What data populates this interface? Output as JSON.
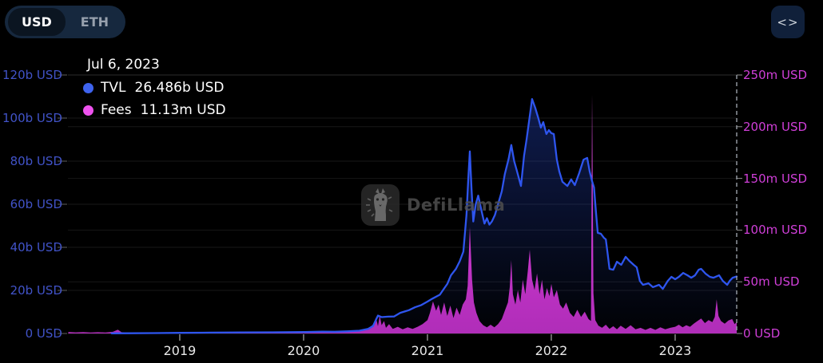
{
  "toolbar": {
    "currency_toggle": {
      "options": [
        "USD",
        "ETH"
      ],
      "selected": "USD"
    },
    "embed_button": {
      "icon_glyph": "<>",
      "name": "embed-code"
    }
  },
  "tooltip": {
    "date": "Jul 6, 2023",
    "series": [
      {
        "label": "TVL",
        "value": "26.486b USD",
        "color": "#3e63ee"
      },
      {
        "label": "Fees",
        "value": "11.13m USD",
        "color": "#ee52ee"
      }
    ]
  },
  "watermark": {
    "text": "DefiLlama"
  },
  "chart_data": {
    "type": "line+bar",
    "title": "",
    "x_axis": {
      "range": [
        2018.097,
        2023.497
      ],
      "ticks": [
        2019,
        2020,
        2021,
        2022,
        2023
      ]
    },
    "left_axis": {
      "name": "TVL",
      "color": "#4153c8",
      "range": [
        0,
        120
      ],
      "ticks": [
        {
          "v": 120,
          "label": "120b USD"
        },
        {
          "v": 100,
          "label": "100b USD"
        },
        {
          "v": 80,
          "label": "80b USD"
        },
        {
          "v": 60,
          "label": "60b USD"
        },
        {
          "v": 40,
          "label": "40b USD"
        },
        {
          "v": 20,
          "label": "20b USD"
        },
        {
          "v": 0,
          "label": "0 USD"
        }
      ]
    },
    "right_axis": {
      "name": "Fees",
      "color": "#d03fd8",
      "range": [
        0,
        250
      ],
      "ticks": [
        {
          "v": 250,
          "label": "250m USD"
        },
        {
          "v": 200,
          "label": "200m USD"
        },
        {
          "v": 150,
          "label": "150m USD"
        },
        {
          "v": 100,
          "label": "100m USD"
        },
        {
          "v": 50,
          "label": "50m USD"
        },
        {
          "v": 0,
          "label": "0 USD"
        }
      ]
    },
    "crosshair_x": 2023.497,
    "grid_color": "rgba(255,255,255,0.09)",
    "series": [
      {
        "name": "TVL",
        "type": "line",
        "axis": "left",
        "color": "#2e55ee",
        "unit": "b USD",
        "points": [
          [
            2018.45,
            0.08
          ],
          [
            2018.6,
            0.12
          ],
          [
            2018.8,
            0.18
          ],
          [
            2019.0,
            0.28
          ],
          [
            2019.25,
            0.4
          ],
          [
            2019.5,
            0.5
          ],
          [
            2019.75,
            0.55
          ],
          [
            2020.0,
            0.65
          ],
          [
            2020.15,
            0.9
          ],
          [
            2020.25,
            0.8
          ],
          [
            2020.35,
            1.0
          ],
          [
            2020.45,
            1.3
          ],
          [
            2020.52,
            2.1
          ],
          [
            2020.56,
            3.4
          ],
          [
            2020.6,
            8.3
          ],
          [
            2020.63,
            7.6
          ],
          [
            2020.68,
            7.8
          ],
          [
            2020.73,
            7.9
          ],
          [
            2020.78,
            9.6
          ],
          [
            2020.85,
            10.8
          ],
          [
            2020.9,
            12.2
          ],
          [
            2020.95,
            13.2
          ],
          [
            2021.0,
            14.8
          ],
          [
            2021.04,
            16.2
          ],
          [
            2021.1,
            18.0
          ],
          [
            2021.13,
            20.5
          ],
          [
            2021.16,
            23.0
          ],
          [
            2021.19,
            27.0
          ],
          [
            2021.23,
            30.0
          ],
          [
            2021.26,
            33.5
          ],
          [
            2021.29,
            38.0
          ],
          [
            2021.315,
            55.0
          ],
          [
            2021.33,
            72.0
          ],
          [
            2021.342,
            84.5
          ],
          [
            2021.355,
            68.0
          ],
          [
            2021.37,
            52.0
          ],
          [
            2021.39,
            60.0
          ],
          [
            2021.41,
            64.0
          ],
          [
            2021.44,
            56.0
          ],
          [
            2021.46,
            51.0
          ],
          [
            2021.48,
            53.5
          ],
          [
            2021.5,
            50.5
          ],
          [
            2021.52,
            52.0
          ],
          [
            2021.545,
            55.0
          ],
          [
            2021.57,
            60.0
          ],
          [
            2021.6,
            66.0
          ],
          [
            2021.625,
            74.0
          ],
          [
            2021.655,
            81.0
          ],
          [
            2021.677,
            87.5
          ],
          [
            2021.7,
            80.0
          ],
          [
            2021.72,
            75.9
          ],
          [
            2021.755,
            68.5
          ],
          [
            2021.78,
            82.6
          ],
          [
            2021.8,
            90.0
          ],
          [
            2021.82,
            98.5
          ],
          [
            2021.845,
            108.8
          ],
          [
            2021.87,
            104.8
          ],
          [
            2021.895,
            100.0
          ],
          [
            2021.916,
            95.6
          ],
          [
            2021.935,
            98.1
          ],
          [
            2021.96,
            92.6
          ],
          [
            2021.98,
            94.4
          ],
          [
            2022.0,
            93.0
          ],
          [
            2022.02,
            92.6
          ],
          [
            2022.045,
            80.7
          ],
          [
            2022.065,
            75.2
          ],
          [
            2022.09,
            70.4
          ],
          [
            2022.13,
            68.5
          ],
          [
            2022.16,
            71.5
          ],
          [
            2022.19,
            68.9
          ],
          [
            2022.225,
            74.4
          ],
          [
            2022.26,
            80.7
          ],
          [
            2022.29,
            81.5
          ],
          [
            2022.31,
            75.2
          ],
          [
            2022.329,
            70.7
          ],
          [
            2022.345,
            67.8
          ],
          [
            2022.36,
            56.7
          ],
          [
            2022.375,
            46.7
          ],
          [
            2022.4,
            46.3
          ],
          [
            2022.425,
            44.4
          ],
          [
            2022.44,
            43.7
          ],
          [
            2022.455,
            37.0
          ],
          [
            2022.47,
            30.0
          ],
          [
            2022.5,
            29.6
          ],
          [
            2022.53,
            33.3
          ],
          [
            2022.565,
            31.9
          ],
          [
            2022.6,
            35.6
          ],
          [
            2022.63,
            33.7
          ],
          [
            2022.665,
            31.9
          ],
          [
            2022.69,
            30.7
          ],
          [
            2022.715,
            24.4
          ],
          [
            2022.74,
            22.6
          ],
          [
            2022.785,
            23.3
          ],
          [
            2022.82,
            21.5
          ],
          [
            2022.87,
            22.6
          ],
          [
            2022.9,
            20.7
          ],
          [
            2022.94,
            24.4
          ],
          [
            2022.97,
            26.3
          ],
          [
            2023.0,
            25.2
          ],
          [
            2023.03,
            26.3
          ],
          [
            2023.065,
            28.1
          ],
          [
            2023.1,
            27.0
          ],
          [
            2023.13,
            25.9
          ],
          [
            2023.16,
            27.0
          ],
          [
            2023.19,
            29.6
          ],
          [
            2023.21,
            30.0
          ],
          [
            2023.245,
            27.8
          ],
          [
            2023.28,
            26.3
          ],
          [
            2023.31,
            25.9
          ],
          [
            2023.355,
            27.0
          ],
          [
            2023.385,
            24.4
          ],
          [
            2023.42,
            22.6
          ],
          [
            2023.44,
            24.4
          ],
          [
            2023.465,
            25.9
          ],
          [
            2023.497,
            26.486
          ]
        ]
      },
      {
        "name": "Fees",
        "type": "bar",
        "axis": "right",
        "color": "#d435d4",
        "unit": "m USD",
        "points": [
          [
            2018.1,
            1.5
          ],
          [
            2018.16,
            1.1
          ],
          [
            2018.22,
            1.4
          ],
          [
            2018.28,
            1.0
          ],
          [
            2018.34,
            1.2
          ],
          [
            2018.4,
            1.0
          ],
          [
            2018.46,
            1.6
          ],
          [
            2018.5,
            3.6
          ],
          [
            2018.53,
            1.2
          ],
          [
            2018.6,
            0.9
          ],
          [
            2018.7,
            0.8
          ],
          [
            2018.85,
            0.7
          ],
          [
            2019.0,
            0.8
          ],
          [
            2019.2,
            0.7
          ],
          [
            2019.4,
            1.0
          ],
          [
            2019.55,
            1.3
          ],
          [
            2019.7,
            0.9
          ],
          [
            2019.85,
            0.8
          ],
          [
            2020.0,
            0.9
          ],
          [
            2020.1,
            1.1
          ],
          [
            2020.2,
            1.6
          ],
          [
            2020.3,
            1.4
          ],
          [
            2020.4,
            2.2
          ],
          [
            2020.47,
            3.0
          ],
          [
            2020.52,
            5.0
          ],
          [
            2020.56,
            8.5
          ],
          [
            2020.585,
            15.5
          ],
          [
            2020.6,
            7.0
          ],
          [
            2020.615,
            17.5
          ],
          [
            2020.63,
            8.0
          ],
          [
            2020.65,
            12.0
          ],
          [
            2020.665,
            5.5
          ],
          [
            2020.69,
            9.0
          ],
          [
            2020.72,
            4.5
          ],
          [
            2020.76,
            6.5
          ],
          [
            2020.8,
            4.0
          ],
          [
            2020.84,
            6.0
          ],
          [
            2020.88,
            4.5
          ],
          [
            2020.92,
            6.5
          ],
          [
            2020.96,
            9.0
          ],
          [
            2021.0,
            13.0
          ],
          [
            2021.02,
            20.0
          ],
          [
            2021.045,
            31.0
          ],
          [
            2021.07,
            22.0
          ],
          [
            2021.09,
            28.0
          ],
          [
            2021.11,
            18.0
          ],
          [
            2021.135,
            30.0
          ],
          [
            2021.16,
            17.0
          ],
          [
            2021.185,
            27.0
          ],
          [
            2021.21,
            15.0
          ],
          [
            2021.235,
            25.0
          ],
          [
            2021.26,
            18.0
          ],
          [
            2021.285,
            28.0
          ],
          [
            2021.31,
            33.0
          ],
          [
            2021.325,
            46.0
          ],
          [
            2021.342,
            103.0
          ],
          [
            2021.36,
            52.0
          ],
          [
            2021.375,
            30.0
          ],
          [
            2021.395,
            20.0
          ],
          [
            2021.42,
            12.0
          ],
          [
            2021.45,
            8.0
          ],
          [
            2021.48,
            6.0
          ],
          [
            2021.51,
            8.5
          ],
          [
            2021.54,
            6.0
          ],
          [
            2021.57,
            9.0
          ],
          [
            2021.6,
            14.0
          ],
          [
            2021.625,
            22.0
          ],
          [
            2021.65,
            30.0
          ],
          [
            2021.665,
            45.0
          ],
          [
            2021.677,
            71.0
          ],
          [
            2021.69,
            38.0
          ],
          [
            2021.71,
            28.0
          ],
          [
            2021.73,
            42.0
          ],
          [
            2021.75,
            30.0
          ],
          [
            2021.77,
            52.0
          ],
          [
            2021.79,
            38.0
          ],
          [
            2021.81,
            60.0
          ],
          [
            2021.826,
            81.0
          ],
          [
            2021.845,
            52.0
          ],
          [
            2021.865,
            42.0
          ],
          [
            2021.885,
            58.0
          ],
          [
            2021.905,
            38.0
          ],
          [
            2021.925,
            52.0
          ],
          [
            2021.945,
            33.0
          ],
          [
            2021.965,
            44.0
          ],
          [
            2021.985,
            36.0
          ],
          [
            2022.0,
            48.0
          ],
          [
            2022.02,
            35.0
          ],
          [
            2022.045,
            42.0
          ],
          [
            2022.07,
            28.0
          ],
          [
            2022.095,
            24.0
          ],
          [
            2022.12,
            30.0
          ],
          [
            2022.15,
            20.0
          ],
          [
            2022.18,
            16.0
          ],
          [
            2022.21,
            23.0
          ],
          [
            2022.24,
            16.0
          ],
          [
            2022.27,
            21.0
          ],
          [
            2022.3,
            14.0
          ],
          [
            2022.32,
            12.0
          ],
          [
            2022.329,
            231.0
          ],
          [
            2022.34,
            39.0
          ],
          [
            2022.355,
            13.0
          ],
          [
            2022.38,
            7.5
          ],
          [
            2022.41,
            5.5
          ],
          [
            2022.44,
            8.5
          ],
          [
            2022.47,
            4.5
          ],
          [
            2022.5,
            7.0
          ],
          [
            2022.53,
            4.0
          ],
          [
            2022.56,
            7.5
          ],
          [
            2022.6,
            4.5
          ],
          [
            2022.64,
            8.0
          ],
          [
            2022.68,
            4.0
          ],
          [
            2022.72,
            5.5
          ],
          [
            2022.76,
            3.5
          ],
          [
            2022.8,
            5.5
          ],
          [
            2022.84,
            3.5
          ],
          [
            2022.88,
            6.0
          ],
          [
            2022.92,
            4.0
          ],
          [
            2022.96,
            5.5
          ],
          [
            2023.0,
            6.5
          ],
          [
            2023.03,
            8.5
          ],
          [
            2023.06,
            6.0
          ],
          [
            2023.09,
            8.0
          ],
          [
            2023.12,
            6.5
          ],
          [
            2023.15,
            9.5
          ],
          [
            2023.18,
            12.0
          ],
          [
            2023.21,
            14.5
          ],
          [
            2023.24,
            10.0
          ],
          [
            2023.27,
            13.0
          ],
          [
            2023.3,
            11.0
          ],
          [
            2023.32,
            16.0
          ],
          [
            2023.335,
            33.0
          ],
          [
            2023.35,
            17.0
          ],
          [
            2023.37,
            12.0
          ],
          [
            2023.4,
            9.5
          ],
          [
            2023.43,
            12.5
          ],
          [
            2023.46,
            14.0
          ],
          [
            2023.48,
            9.0
          ],
          [
            2023.497,
            11.13
          ]
        ]
      }
    ]
  }
}
